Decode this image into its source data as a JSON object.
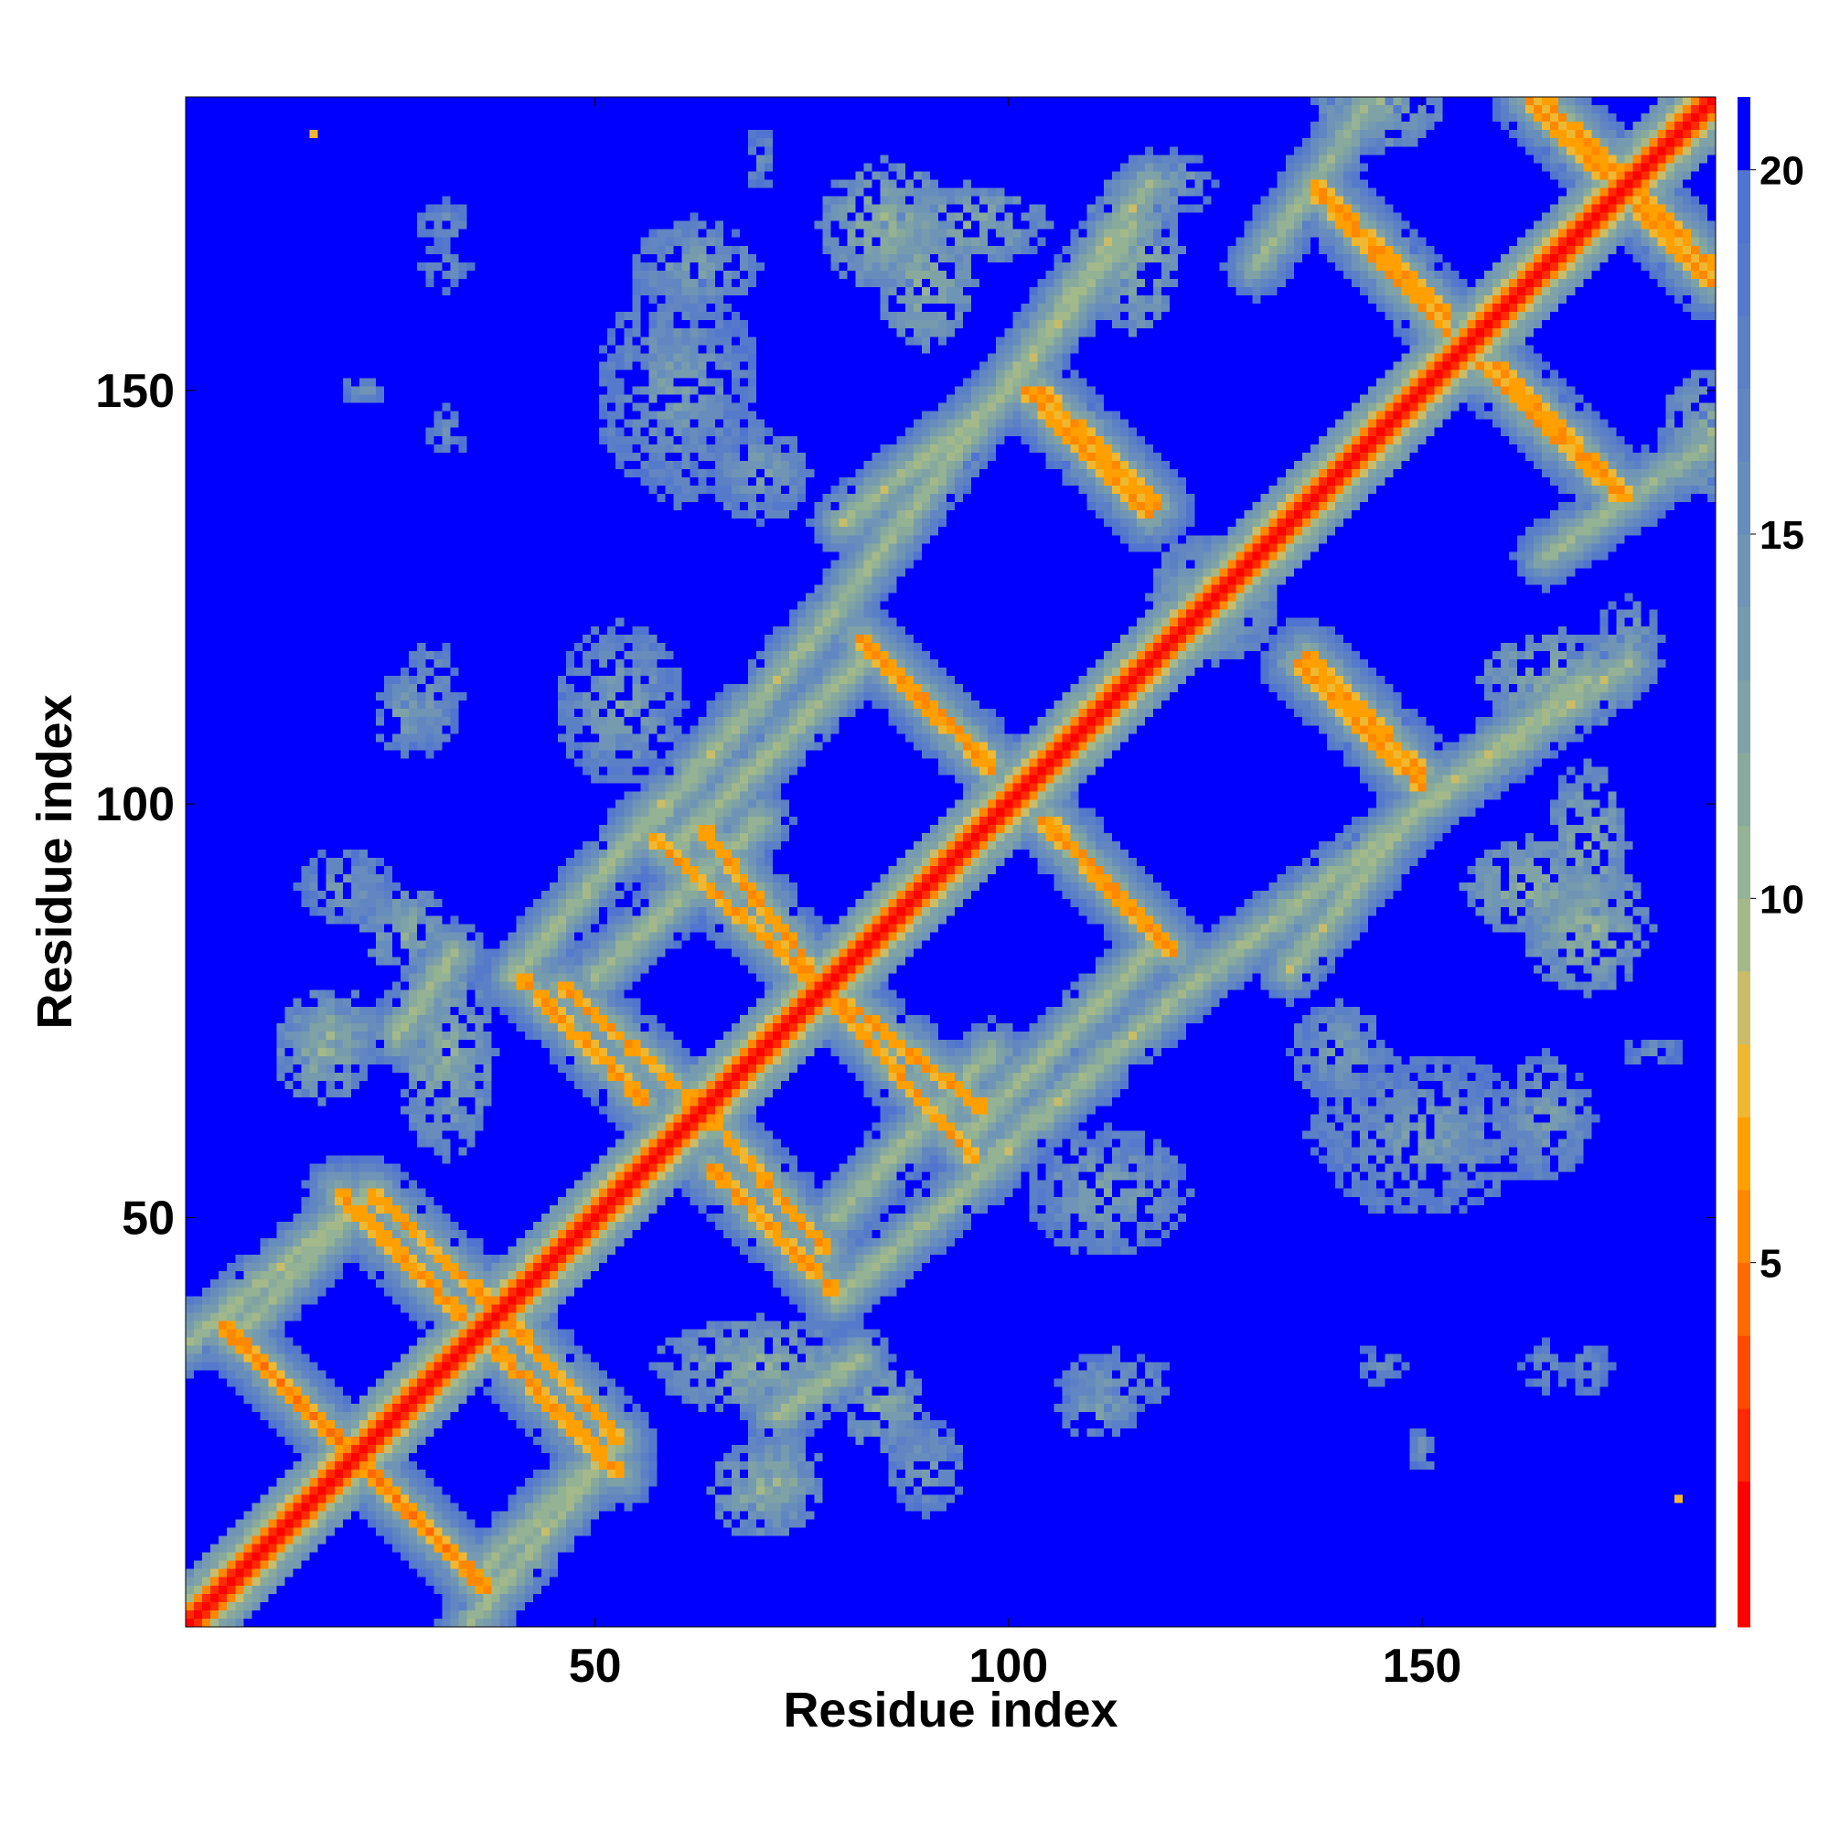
{
  "chart_data": {
    "type": "heatmap",
    "title": "",
    "xlabel": "Residue index",
    "ylabel": "Residue index",
    "n_residues": 185,
    "xlim": [
      1,
      185
    ],
    "ylim": [
      1,
      185
    ],
    "xticks": [
      50,
      100,
      150
    ],
    "yticks": [
      50,
      100,
      150
    ],
    "colorbar": {
      "ticks": [
        5,
        10,
        15,
        20
      ],
      "range": [
        0,
        21
      ],
      "levels": [
        {
          "max": 2,
          "color": "#ff0000"
        },
        {
          "max": 3,
          "color": "#ff2a00"
        },
        {
          "max": 4,
          "color": "#ff4a00"
        },
        {
          "max": 5,
          "color": "#ff6a00"
        },
        {
          "max": 6,
          "color": "#ff8800"
        },
        {
          "max": 7,
          "color": "#ffa000"
        },
        {
          "max": 8,
          "color": "#f0b830"
        },
        {
          "max": 9,
          "color": "#c9bd6a"
        },
        {
          "max": 10,
          "color": "#a4b98a"
        },
        {
          "max": 11,
          "color": "#94b294"
        },
        {
          "max": 12,
          "color": "#88aa9c"
        },
        {
          "max": 13,
          "color": "#7fa2a6"
        },
        {
          "max": 14,
          "color": "#779bae"
        },
        {
          "max": 15,
          "color": "#6f94b6"
        },
        {
          "max": 16,
          "color": "#678dbc"
        },
        {
          "max": 17,
          "color": "#6186c2"
        },
        {
          "max": 18,
          "color": "#5b80c6"
        },
        {
          "max": 19,
          "color": "#557acb"
        },
        {
          "max": 20,
          "color": "#5074cf"
        },
        {
          "max": 21,
          "color": "#0000ff"
        }
      ]
    },
    "encoding": "contact-map distance (values at and above 20 drawn as saturated blue)",
    "features": {
      "diagonal": {
        "value": 1,
        "width": 2
      },
      "strand_pairs": [
        {
          "x": [
            5,
            37
          ],
          "y": [
            37,
            5
          ],
          "type": "antiparallel",
          "core": 5.5
        },
        {
          "x": [
            23,
            37
          ],
          "y": [
            53,
            40
          ],
          "type": "antiparallel",
          "core": 6
        },
        {
          "x": [
            38,
            53
          ],
          "y": [
            34,
            19
          ],
          "type": "antiparallel",
          "core": 6
        },
        {
          "x": [
            41,
            56
          ],
          "y": [
            79,
            64
          ],
          "type": "antiparallel",
          "core": 6
        },
        {
          "x": [
            64,
            78
          ],
          "y": [
            62,
            46
          ],
          "type": "antiparallel",
          "core": 6
        },
        {
          "x": [
            57,
            77
          ],
          "y": [
            96,
            78
          ],
          "type": "antiparallel",
          "core": 6
        },
        {
          "x": [
            79,
            97
          ],
          "y": [
            77,
            63
          ],
          "type": "antiparallel",
          "core": 6
        },
        {
          "x": [
            82,
            98
          ],
          "y": [
            120,
            104
          ],
          "type": "antiparallel",
          "core": 6
        },
        {
          "x": [
            105,
            120
          ],
          "y": [
            98,
            82
          ],
          "type": "antiparallel",
          "core": 6
        },
        {
          "x": [
            104,
            118
          ],
          "y": [
            150,
            136
          ],
          "type": "antiparallel",
          "core": 6
        },
        {
          "x": [
            135,
            150
          ],
          "y": [
            117,
            102
          ],
          "type": "antiparallel",
          "core": 6
        },
        {
          "x": [
            137,
            153
          ],
          "y": [
            175,
            159
          ],
          "type": "antiparallel",
          "core": 6
        },
        {
          "x": [
            157,
            174
          ],
          "y": [
            153,
            137
          ],
          "type": "antiparallel",
          "core": 6
        },
        {
          "x": [
            163,
            172
          ],
          "y": [
            185,
            176
          ],
          "type": "antiparallel",
          "core": 6
        },
        {
          "x": [
            173,
            185
          ],
          "y": [
            177,
            165
          ],
          "type": "antiparallel",
          "core": 6
        }
      ],
      "parallel_bands": [
        {
          "x": [
            1,
            23
          ],
          "y": [
            35,
            53
          ],
          "core": 9.5
        },
        {
          "x": [
            35,
            52
          ],
          "y": [
            6,
            22
          ],
          "core": 9.5
        },
        {
          "x": [
            26,
            33
          ],
          "y": [
            72,
            82
          ],
          "core": 9.5
        },
        {
          "x": [
            40,
            58
          ],
          "y": [
            79,
            100
          ],
          "core": 9.5
        },
        {
          "x": [
            57,
            78
          ],
          "y": [
            98,
            122
          ],
          "core": 9.5
        },
        {
          "x": [
            79,
            98
          ],
          "y": [
            50,
            70
          ],
          "core": 9.5
        },
        {
          "x": [
            95,
            118
          ],
          "y": [
            60,
            83
          ],
          "core": 9.5
        },
        {
          "x": [
            78,
            97
          ],
          "y": [
            122,
            147
          ],
          "core": 9.5
        },
        {
          "x": [
            98,
            117
          ],
          "y": [
            148,
            175
          ],
          "core": 9.5
        },
        {
          "x": [
            134,
            150
          ],
          "y": [
            80,
            100
          ],
          "core": 9.5
        },
        {
          "x": [
            150,
            170
          ],
          "y": [
            100,
            115
          ],
          "core": 9.5
        },
        {
          "x": [
            130,
            143
          ],
          "y": [
            165,
            184
          ],
          "core": 10
        }
      ],
      "diffuse_patches": [
        {
          "cx": 18,
          "cy": 72,
          "rx": 6,
          "ry": 6,
          "core": 11
        },
        {
          "cx": 27,
          "cy": 85,
          "rx": 5,
          "ry": 5,
          "core": 11
        },
        {
          "cx": 27,
          "cy": 111,
          "rx": 4,
          "ry": 5,
          "core": 12.5
        },
        {
          "cx": 32,
          "cy": 170,
          "rx": 4,
          "ry": 3,
          "core": 14
        },
        {
          "cx": 22,
          "cy": 150,
          "rx": 3,
          "ry": 2,
          "core": 14
        },
        {
          "cx": 70,
          "cy": 32,
          "rx": 13,
          "ry": 6,
          "core": 11
        },
        {
          "cx": 70,
          "cy": 17,
          "rx": 6,
          "ry": 6,
          "core": 11
        },
        {
          "cx": 90,
          "cy": 20,
          "rx": 5,
          "ry": 6,
          "core": 13
        },
        {
          "cx": 113,
          "cy": 30,
          "rx": 7,
          "ry": 4,
          "core": 13
        },
        {
          "cx": 112,
          "cy": 53,
          "rx": 10,
          "ry": 8,
          "core": 12.5
        },
        {
          "cx": 150,
          "cy": 60,
          "rx": 14,
          "ry": 10,
          "core": 13
        },
        {
          "cx": 145,
          "cy": 32,
          "rx": 3,
          "ry": 3,
          "core": 14
        },
        {
          "cx": 165,
          "cy": 32,
          "rx": 3,
          "ry": 3,
          "core": 14
        },
        {
          "cx": 178,
          "cy": 70,
          "rx": 4,
          "ry": 2,
          "core": 14
        },
        {
          "cx": 163,
          "cy": 90,
          "rx": 8,
          "ry": 6,
          "core": 10.5
        },
        {
          "cx": 167,
          "cy": 115,
          "rx": 10,
          "ry": 6,
          "core": 10.5
        },
        {
          "cx": 70,
          "cy": 140,
          "rx": 6,
          "ry": 6,
          "core": 12.5
        },
        {
          "cx": 62,
          "cy": 165,
          "rx": 8,
          "ry": 6,
          "core": 12.5
        },
        {
          "cx": 85,
          "cy": 170,
          "rx": 8,
          "ry": 8,
          "core": 10.5
        },
        {
          "cx": 95,
          "cy": 170,
          "rx": 10,
          "ry": 5,
          "core": 11
        },
        {
          "cx": 120,
          "cy": 175,
          "rx": 5,
          "ry": 4,
          "core": 12.5
        },
        {
          "cx": 125,
          "cy": 125,
          "rx": 8,
          "ry": 8,
          "core": 11.5
        },
        {
          "cx": 185,
          "cy": 145,
          "rx": 6,
          "ry": 8,
          "core": 11
        }
      ],
      "isolated_points": [
        {
          "x": 16,
          "y": 181,
          "value": 7
        },
        {
          "x": 181,
          "y": 16,
          "value": 7
        }
      ]
    }
  }
}
